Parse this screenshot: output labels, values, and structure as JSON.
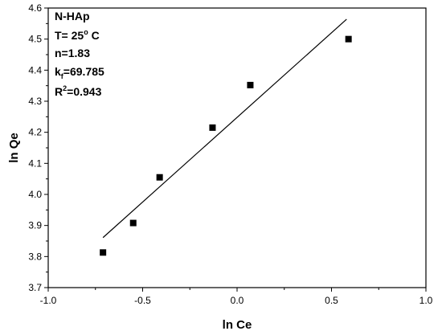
{
  "chart_data": {
    "type": "scatter",
    "xlabel": "ln Ce",
    "ylabel": "ln Qe",
    "xlim": [
      -1.0,
      1.0
    ],
    "ylim": [
      3.7,
      4.6
    ],
    "xticks": [
      "-1.0",
      "-0.5",
      "0.0",
      "0.5",
      "1.0"
    ],
    "yticks": [
      "3.7",
      "3.8",
      "3.9",
      "4.0",
      "4.1",
      "4.2",
      "4.3",
      "4.4",
      "4.5",
      "4.6"
    ],
    "grid": false,
    "points": [
      {
        "x": -0.71,
        "y": 3.813
      },
      {
        "x": -0.55,
        "y": 3.908
      },
      {
        "x": -0.41,
        "y": 4.055
      },
      {
        "x": -0.13,
        "y": 4.215
      },
      {
        "x": 0.07,
        "y": 4.352
      },
      {
        "x": 0.59,
        "y": 4.5
      }
    ],
    "fit_line": {
      "x": [
        -0.71,
        0.58
      ],
      "y": [
        3.861,
        4.564
      ]
    },
    "annotations": {
      "line1": "N-HAp",
      "line2": "T= 25",
      "line2_sup": "o",
      "line2_tail": " C",
      "line3": "n=1.83",
      "line4": "k",
      "line4_sub": "f",
      "line4_tail": "=69.785",
      "line5": "R",
      "line5_sup": "2",
      "line5_tail": "=0.943"
    }
  }
}
